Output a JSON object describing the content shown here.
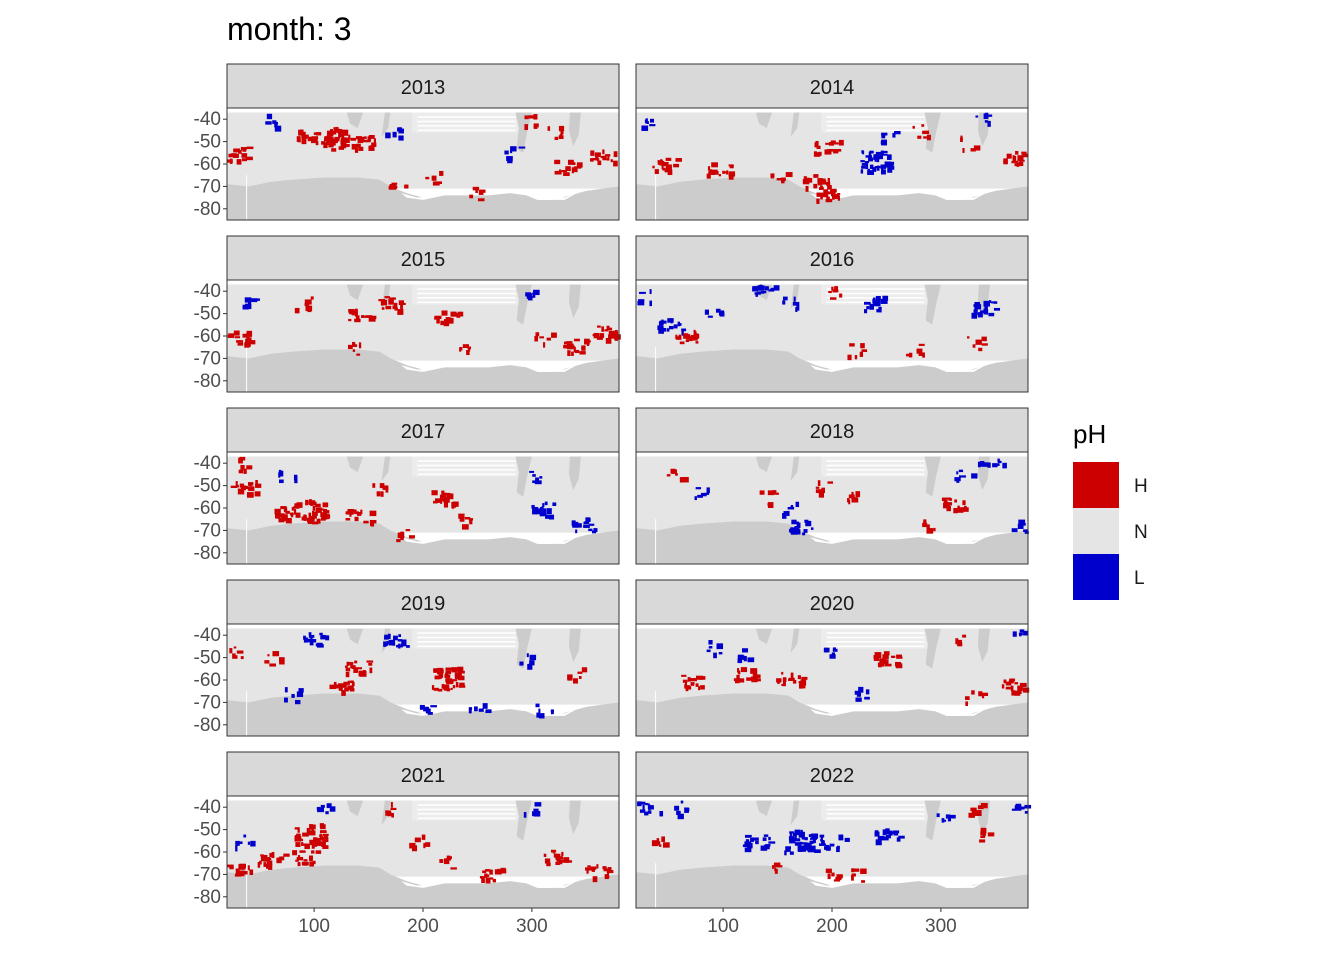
{
  "chart_data": {
    "type": "heatmap",
    "title": "month: 3",
    "xlabel": "",
    "ylabel": "",
    "facet_label": "year",
    "panels": [
      "2013",
      "2014",
      "2015",
      "2016",
      "2017",
      "2018",
      "2019",
      "2020",
      "2021",
      "2022"
    ],
    "xlim": [
      20,
      380
    ],
    "ylim": [
      -85,
      -35
    ],
    "x_ticks": [
      100,
      200,
      300
    ],
    "x_tick_labels": [
      "100",
      "200",
      "300"
    ],
    "y_ticks": [
      -40,
      -50,
      -60,
      -70,
      -80
    ],
    "y_tick_labels": [
      "-40",
      "-50",
      "-60",
      "-70",
      "-80"
    ],
    "grid": false,
    "legend": {
      "title": "pH",
      "position": "right",
      "entries": [
        {
          "label": "H",
          "color": "#cc0000"
        },
        {
          "label": "N",
          "color": "#e5e5e5"
        },
        {
          "label": "L",
          "color": "#0000cc"
        }
      ]
    },
    "colors": {
      "H": "#cc0000",
      "N": "#e5e5e5",
      "L": "#0000cc",
      "land": "#cccccc",
      "missing": "#ffffff",
      "strip": "#d9d9d9"
    },
    "anomalies": [
      {
        "year": "2013",
        "cells": [
          {
            "x": 120,
            "y": -48,
            "class": "H",
            "size": "large"
          },
          {
            "x": 95,
            "y": -47,
            "class": "H",
            "size": "medium"
          },
          {
            "x": 145,
            "y": -50,
            "class": "H",
            "size": "medium"
          },
          {
            "x": 330,
            "y": -61,
            "class": "H",
            "size": "medium"
          },
          {
            "x": 365,
            "y": -56,
            "class": "H",
            "size": "medium"
          },
          {
            "x": 28,
            "y": -55,
            "class": "H",
            "size": "medium"
          },
          {
            "x": 210,
            "y": -65,
            "class": "H",
            "size": "small"
          },
          {
            "x": 300,
            "y": -40,
            "class": "H",
            "size": "small"
          },
          {
            "x": 320,
            "y": -45,
            "class": "H",
            "size": "small"
          },
          {
            "x": 60,
            "y": -40,
            "class": "L",
            "size": "small"
          },
          {
            "x": 280,
            "y": -55,
            "class": "L",
            "size": "small"
          },
          {
            "x": 170,
            "y": -45,
            "class": "L",
            "size": "small"
          },
          {
            "x": 175,
            "y": -70,
            "class": "H",
            "size": "small"
          },
          {
            "x": 245,
            "y": -73,
            "class": "H",
            "size": "small"
          }
        ]
      },
      {
        "year": "2014",
        "cells": [
          {
            "x": 240,
            "y": -58,
            "class": "L",
            "size": "large"
          },
          {
            "x": 250,
            "y": -47,
            "class": "L",
            "size": "small"
          },
          {
            "x": 195,
            "y": -52,
            "class": "H",
            "size": "medium"
          },
          {
            "x": 185,
            "y": -67,
            "class": "H",
            "size": "medium"
          },
          {
            "x": 195,
            "y": -73,
            "class": "H",
            "size": "medium"
          },
          {
            "x": 45,
            "y": -60,
            "class": "H",
            "size": "medium"
          },
          {
            "x": 95,
            "y": -62,
            "class": "H",
            "size": "medium"
          },
          {
            "x": 365,
            "y": -57,
            "class": "H",
            "size": "medium"
          },
          {
            "x": 325,
            "y": -50,
            "class": "H",
            "size": "small"
          },
          {
            "x": 30,
            "y": -40,
            "class": "L",
            "size": "small"
          },
          {
            "x": 335,
            "y": -40,
            "class": "L",
            "size": "small"
          },
          {
            "x": 150,
            "y": -65,
            "class": "H",
            "size": "small"
          },
          {
            "x": 280,
            "y": -45,
            "class": "H",
            "size": "small"
          }
        ]
      },
      {
        "year": "2015",
        "cells": [
          {
            "x": 30,
            "y": -60,
            "class": "H",
            "size": "medium"
          },
          {
            "x": 220,
            "y": -51,
            "class": "H",
            "size": "medium"
          },
          {
            "x": 140,
            "y": -50,
            "class": "H",
            "size": "medium"
          },
          {
            "x": 170,
            "y": -45,
            "class": "H",
            "size": "medium"
          },
          {
            "x": 340,
            "y": -64,
            "class": "H",
            "size": "medium"
          },
          {
            "x": 365,
            "y": -58,
            "class": "H",
            "size": "medium"
          },
          {
            "x": 135,
            "y": -65,
            "class": "H",
            "size": "small"
          },
          {
            "x": 240,
            "y": -65,
            "class": "H",
            "size": "small"
          },
          {
            "x": 90,
            "y": -45,
            "class": "H",
            "size": "small"
          },
          {
            "x": 300,
            "y": -42,
            "class": "L",
            "size": "small"
          },
          {
            "x": 40,
            "y": -45,
            "class": "L",
            "size": "small"
          },
          {
            "x": 310,
            "y": -60,
            "class": "H",
            "size": "small"
          }
        ]
      },
      {
        "year": "2016",
        "cells": [
          {
            "x": 50,
            "y": -55,
            "class": "L",
            "size": "medium"
          },
          {
            "x": 65,
            "y": -60,
            "class": "H",
            "size": "medium"
          },
          {
            "x": 135,
            "y": -39,
            "class": "L",
            "size": "medium"
          },
          {
            "x": 240,
            "y": -45,
            "class": "L",
            "size": "medium"
          },
          {
            "x": 340,
            "y": -47,
            "class": "L",
            "size": "medium"
          },
          {
            "x": 160,
            "y": -45,
            "class": "L",
            "size": "small"
          },
          {
            "x": 200,
            "y": -40,
            "class": "H",
            "size": "small"
          },
          {
            "x": 275,
            "y": -65,
            "class": "H",
            "size": "small"
          },
          {
            "x": 330,
            "y": -63,
            "class": "H",
            "size": "small"
          },
          {
            "x": 90,
            "y": -50,
            "class": "L",
            "size": "small"
          },
          {
            "x": 25,
            "y": -42,
            "class": "L",
            "size": "small"
          },
          {
            "x": 220,
            "y": -66,
            "class": "H",
            "size": "small"
          }
        ]
      },
      {
        "year": "2017",
        "cells": [
          {
            "x": 95,
            "y": -61,
            "class": "H",
            "size": "large"
          },
          {
            "x": 70,
            "y": -62,
            "class": "H",
            "size": "medium"
          },
          {
            "x": 35,
            "y": -50,
            "class": "H",
            "size": "medium"
          },
          {
            "x": 140,
            "y": -63,
            "class": "H",
            "size": "medium"
          },
          {
            "x": 215,
            "y": -55,
            "class": "H",
            "size": "medium"
          },
          {
            "x": 345,
            "y": -67,
            "class": "L",
            "size": "medium"
          },
          {
            "x": 310,
            "y": -60,
            "class": "L",
            "size": "medium"
          },
          {
            "x": 160,
            "y": -50,
            "class": "H",
            "size": "small"
          },
          {
            "x": 300,
            "y": -45,
            "class": "L",
            "size": "small"
          },
          {
            "x": 30,
            "y": -40,
            "class": "H",
            "size": "small"
          },
          {
            "x": 180,
            "y": -72,
            "class": "H",
            "size": "small"
          },
          {
            "x": 240,
            "y": -65,
            "class": "H",
            "size": "small"
          },
          {
            "x": 75,
            "y": -45,
            "class": "L",
            "size": "small"
          }
        ]
      },
      {
        "year": "2018",
        "cells": [
          {
            "x": 345,
            "y": -38,
            "class": "L",
            "size": "medium"
          },
          {
            "x": 310,
            "y": -58,
            "class": "H",
            "size": "medium"
          },
          {
            "x": 170,
            "y": -68,
            "class": "L",
            "size": "medium"
          },
          {
            "x": 285,
            "y": -67,
            "class": "H",
            "size": "small"
          },
          {
            "x": 190,
            "y": -50,
            "class": "H",
            "size": "small"
          },
          {
            "x": 215,
            "y": -55,
            "class": "H",
            "size": "small"
          },
          {
            "x": 55,
            "y": -45,
            "class": "H",
            "size": "small"
          },
          {
            "x": 80,
            "y": -52,
            "class": "L",
            "size": "small"
          },
          {
            "x": 160,
            "y": -60,
            "class": "L",
            "size": "small"
          },
          {
            "x": 370,
            "y": -68,
            "class": "L",
            "size": "small"
          },
          {
            "x": 140,
            "y": -55,
            "class": "H",
            "size": "small"
          },
          {
            "x": 320,
            "y": -45,
            "class": "L",
            "size": "small"
          }
        ]
      },
      {
        "year": "2019",
        "cells": [
          {
            "x": 220,
            "y": -59,
            "class": "H",
            "size": "large"
          },
          {
            "x": 125,
            "y": -63,
            "class": "H",
            "size": "medium"
          },
          {
            "x": 140,
            "y": -54,
            "class": "H",
            "size": "medium"
          },
          {
            "x": 100,
            "y": -41,
            "class": "L",
            "size": "medium"
          },
          {
            "x": 175,
            "y": -42,
            "class": "L",
            "size": "medium"
          },
          {
            "x": 30,
            "y": -48,
            "class": "H",
            "size": "small"
          },
          {
            "x": 60,
            "y": -50,
            "class": "H",
            "size": "small"
          },
          {
            "x": 290,
            "y": -50,
            "class": "L",
            "size": "small"
          },
          {
            "x": 340,
            "y": -57,
            "class": "H",
            "size": "small"
          },
          {
            "x": 200,
            "y": -73,
            "class": "L",
            "size": "small"
          },
          {
            "x": 250,
            "y": -73,
            "class": "L",
            "size": "small"
          },
          {
            "x": 310,
            "y": -72,
            "class": "L",
            "size": "small"
          },
          {
            "x": 80,
            "y": -66,
            "class": "L",
            "size": "small"
          }
        ]
      },
      {
        "year": "2020",
        "cells": [
          {
            "x": 160,
            "y": -59,
            "class": "H",
            "size": "medium"
          },
          {
            "x": 120,
            "y": -57,
            "class": "H",
            "size": "medium"
          },
          {
            "x": 250,
            "y": -50,
            "class": "H",
            "size": "medium"
          },
          {
            "x": 70,
            "y": -60,
            "class": "H",
            "size": "medium"
          },
          {
            "x": 365,
            "y": -62,
            "class": "H",
            "size": "medium"
          },
          {
            "x": 320,
            "y": -42,
            "class": "H",
            "size": "small"
          },
          {
            "x": 200,
            "y": -48,
            "class": "L",
            "size": "small"
          },
          {
            "x": 90,
            "y": -45,
            "class": "L",
            "size": "small"
          },
          {
            "x": 120,
            "y": -48,
            "class": "L",
            "size": "small"
          },
          {
            "x": 225,
            "y": -65,
            "class": "L",
            "size": "small"
          },
          {
            "x": 330,
            "y": -67,
            "class": "H",
            "size": "small"
          },
          {
            "x": 370,
            "y": -40,
            "class": "L",
            "size": "small"
          }
        ]
      },
      {
        "year": "2021",
        "cells": [
          {
            "x": 95,
            "y": -52,
            "class": "H",
            "size": "large"
          },
          {
            "x": 60,
            "y": -63,
            "class": "H",
            "size": "medium"
          },
          {
            "x": 90,
            "y": -62,
            "class": "H",
            "size": "medium"
          },
          {
            "x": 30,
            "y": -68,
            "class": "H",
            "size": "medium"
          },
          {
            "x": 260,
            "y": -69,
            "class": "H",
            "size": "medium"
          },
          {
            "x": 320,
            "y": -62,
            "class": "H",
            "size": "medium"
          },
          {
            "x": 360,
            "y": -68,
            "class": "H",
            "size": "medium"
          },
          {
            "x": 110,
            "y": -40,
            "class": "L",
            "size": "small"
          },
          {
            "x": 35,
            "y": -55,
            "class": "L",
            "size": "small"
          },
          {
            "x": 195,
            "y": -55,
            "class": "H",
            "size": "small"
          },
          {
            "x": 170,
            "y": -40,
            "class": "H",
            "size": "small"
          },
          {
            "x": 220,
            "y": -64,
            "class": "H",
            "size": "small"
          },
          {
            "x": 300,
            "y": -40,
            "class": "L",
            "size": "small"
          }
        ]
      },
      {
        "year": "2022",
        "cells": [
          {
            "x": 170,
            "y": -55,
            "class": "L",
            "size": "large"
          },
          {
            "x": 130,
            "y": -55,
            "class": "L",
            "size": "medium"
          },
          {
            "x": 30,
            "y": -39,
            "class": "L",
            "size": "medium"
          },
          {
            "x": 200,
            "y": -55,
            "class": "L",
            "size": "medium"
          },
          {
            "x": 250,
            "y": -52,
            "class": "L",
            "size": "medium"
          },
          {
            "x": 60,
            "y": -40,
            "class": "L",
            "size": "small"
          },
          {
            "x": 150,
            "y": -65,
            "class": "H",
            "size": "small"
          },
          {
            "x": 200,
            "y": -70,
            "class": "H",
            "size": "small"
          },
          {
            "x": 220,
            "y": -70,
            "class": "H",
            "size": "small"
          },
          {
            "x": 40,
            "y": -55,
            "class": "H",
            "size": "small"
          },
          {
            "x": 340,
            "y": -52,
            "class": "H",
            "size": "small"
          },
          {
            "x": 300,
            "y": -45,
            "class": "L",
            "size": "small"
          },
          {
            "x": 370,
            "y": -40,
            "class": "L",
            "size": "small"
          },
          {
            "x": 330,
            "y": -40,
            "class": "H",
            "size": "small"
          }
        ]
      }
    ]
  }
}
